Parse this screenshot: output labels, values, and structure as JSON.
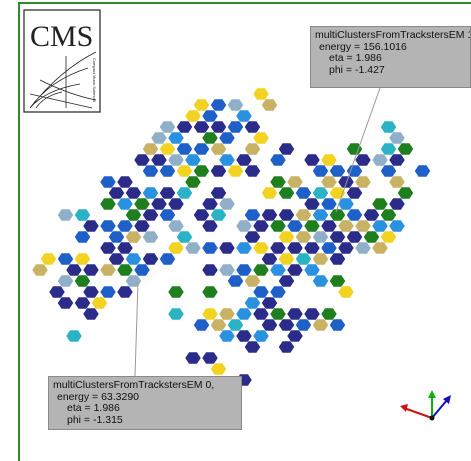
{
  "logo": {
    "title": "CMS",
    "subtitle": "Compact Muon Solenoid"
  },
  "annotations": [
    {
      "lines": [
        "multiClustersFromTrackstersEM 1,",
        "energy = 156.1016",
        "eta = 1.986",
        "phi = -1.427"
      ]
    },
    {
      "lines": [
        "multiClustersFromTrackstersEM 0,",
        "energy = 63.3290",
        "eta = 1.986",
        "phi = -1.315"
      ]
    }
  ]
}
